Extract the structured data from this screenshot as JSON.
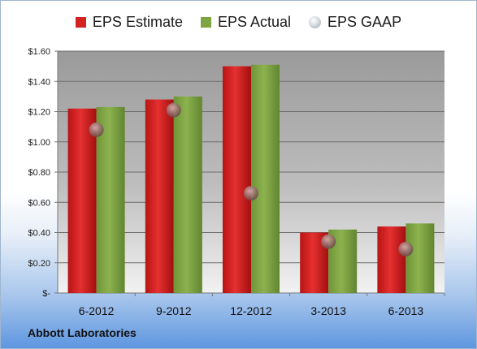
{
  "chart_data": {
    "type": "bar",
    "categories": [
      "6-2012",
      "9-2012",
      "12-2012",
      "3-2013",
      "6-2013"
    ],
    "series": [
      {
        "name": "EPS Estimate",
        "values": [
          1.22,
          1.28,
          1.5,
          0.4,
          0.44
        ],
        "color": "#d42222"
      },
      {
        "name": "EPS Actual",
        "values": [
          1.23,
          1.3,
          1.51,
          0.42,
          0.46
        ],
        "color": "#7fa542"
      }
    ],
    "points": {
      "name": "EPS GAAP",
      "values": [
        1.08,
        1.21,
        0.66,
        0.34,
        0.29
      ]
    },
    "y_ticks": [
      "$-",
      "$0.20",
      "$0.40",
      "$0.60",
      "$0.80",
      "$1.00",
      "$1.20",
      "$1.40",
      "$1.60"
    ],
    "ylim": [
      0,
      1.6
    ],
    "grid": true,
    "legend": "top-center",
    "company": "Abbott Laboratories"
  }
}
